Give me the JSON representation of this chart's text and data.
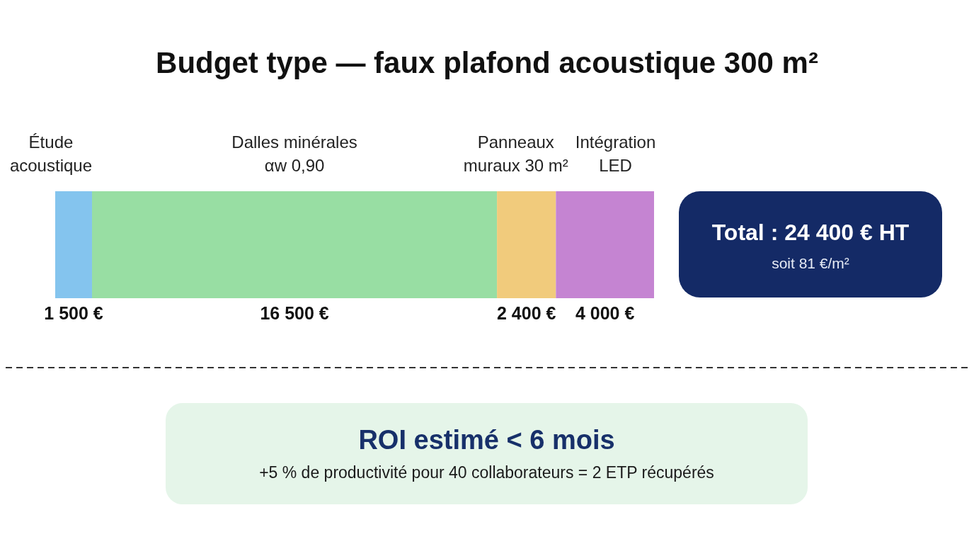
{
  "chart_data": {
    "type": "bar",
    "orientation": "horizontal",
    "stacked": true,
    "title": "Budget type — faux plafond acoustique 300 m²",
    "categories": [
      null
    ],
    "series": [
      {
        "name": "Étude acoustique",
        "color": "#84c4ee",
        "values": [
          1500
        ],
        "value_labels": [
          "1 500 €"
        ]
      },
      {
        "name": "Dalles minérales αw 0,90",
        "color": "#98dea3",
        "values": [
          16500
        ],
        "value_labels": [
          "16 500 €"
        ]
      },
      {
        "name": "Panneaux muraux 30 m²",
        "color": "#f1cb7c",
        "values": [
          2400
        ],
        "value_labels": [
          "2 400 €"
        ]
      },
      {
        "name": "Intégration LED",
        "color": "#c584d2",
        "values": [
          4000
        ],
        "value_labels": [
          "4 000 €"
        ]
      }
    ],
    "totals": [
      "Total : 24 400 € HT"
    ],
    "annotations": [
      "soit 81 €/m²",
      "ROI estimé < 6 mois",
      "+5 % de productivité pour 40 collaborateurs = 2 ETP récupérés"
    ],
    "tick_labels": false
  }
}
